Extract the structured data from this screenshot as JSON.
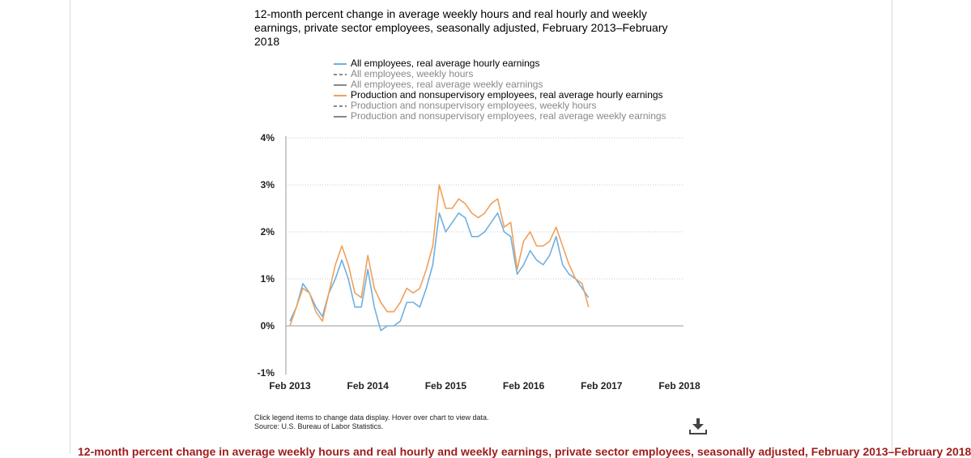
{
  "title": "12-month percent change in average weekly hours and real hourly and weekly earnings, private sector employees, seasonally adjusted, February 2013–February 2018",
  "legend": [
    {
      "label": "All employees, real average hourly earnings",
      "color": "#6fb0e0",
      "dash": "solid",
      "active": true
    },
    {
      "label": "All employees, weekly hours",
      "color": "#888888",
      "dash": "dashed",
      "active": false
    },
    {
      "label": "All employees, real average weekly earnings",
      "color": "#888888",
      "dash": "solid",
      "active": false
    },
    {
      "label": "Production and nonsupervisory employees, real average hourly earnings",
      "color": "#f0a05a",
      "dash": "solid",
      "active": true
    },
    {
      "label": "Production and nonsupervisory employees, weekly hours",
      "color": "#888888",
      "dash": "dashed",
      "active": false
    },
    {
      "label": "Production and nonsupervisory employees, real average weekly earnings",
      "color": "#888888",
      "dash": "solid",
      "active": false
    }
  ],
  "notes": {
    "line1": "Click legend items to change data display. Hover over chart to view data.",
    "line2": "Source: U.S. Bureau of Labor Statistics."
  },
  "caption": "12-month percent change in average weekly hours and real hourly and weekly earnings, private sector employees, seasonally adjusted, February 2013–February 2018",
  "download_icon": "download-icon",
  "chart_data": {
    "type": "line",
    "x_start": "Feb 2013",
    "x_end": "Feb 2018",
    "x_ticks": [
      "Feb 2013",
      "Feb 2014",
      "Feb 2015",
      "Feb 2016",
      "Feb 2017",
      "Feb 2018"
    ],
    "y_ticks": [
      "4%",
      "3%",
      "2%",
      "1%",
      "0%",
      "-1%"
    ],
    "ylim": [
      -1,
      4
    ],
    "grid": true,
    "series": [
      {
        "name": "All employees, real average hourly earnings",
        "color": "#6fb0e0",
        "values": [
          0.1,
          0.4,
          0.9,
          0.7,
          0.4,
          0.2,
          0.7,
          1.0,
          1.4,
          1.0,
          0.4,
          0.4,
          1.2,
          0.4,
          -0.1,
          0.0,
          0.0,
          0.1,
          0.5,
          0.5,
          0.4,
          0.8,
          1.3,
          2.4,
          2.0,
          2.2,
          2.4,
          2.3,
          1.9,
          1.9,
          2.0,
          2.2,
          2.4,
          2.0,
          1.9,
          1.1,
          1.3,
          1.6,
          1.4,
          1.3,
          1.5,
          1.9,
          1.3,
          1.1,
          1.0,
          0.8,
          0.6
        ]
      },
      {
        "name": "Production and nonsupervisory employees, real average hourly earnings",
        "color": "#f0a05a",
        "values": [
          0.0,
          0.4,
          0.8,
          0.7,
          0.3,
          0.1,
          0.7,
          1.3,
          1.7,
          1.3,
          0.7,
          0.6,
          1.5,
          0.8,
          0.5,
          0.3,
          0.3,
          0.5,
          0.8,
          0.7,
          0.8,
          1.2,
          1.7,
          3.0,
          2.5,
          2.5,
          2.7,
          2.6,
          2.4,
          2.3,
          2.4,
          2.6,
          2.7,
          2.1,
          2.2,
          1.2,
          1.8,
          2.0,
          1.7,
          1.7,
          1.8,
          2.1,
          1.7,
          1.3,
          1.0,
          0.9,
          0.4
        ]
      }
    ]
  }
}
